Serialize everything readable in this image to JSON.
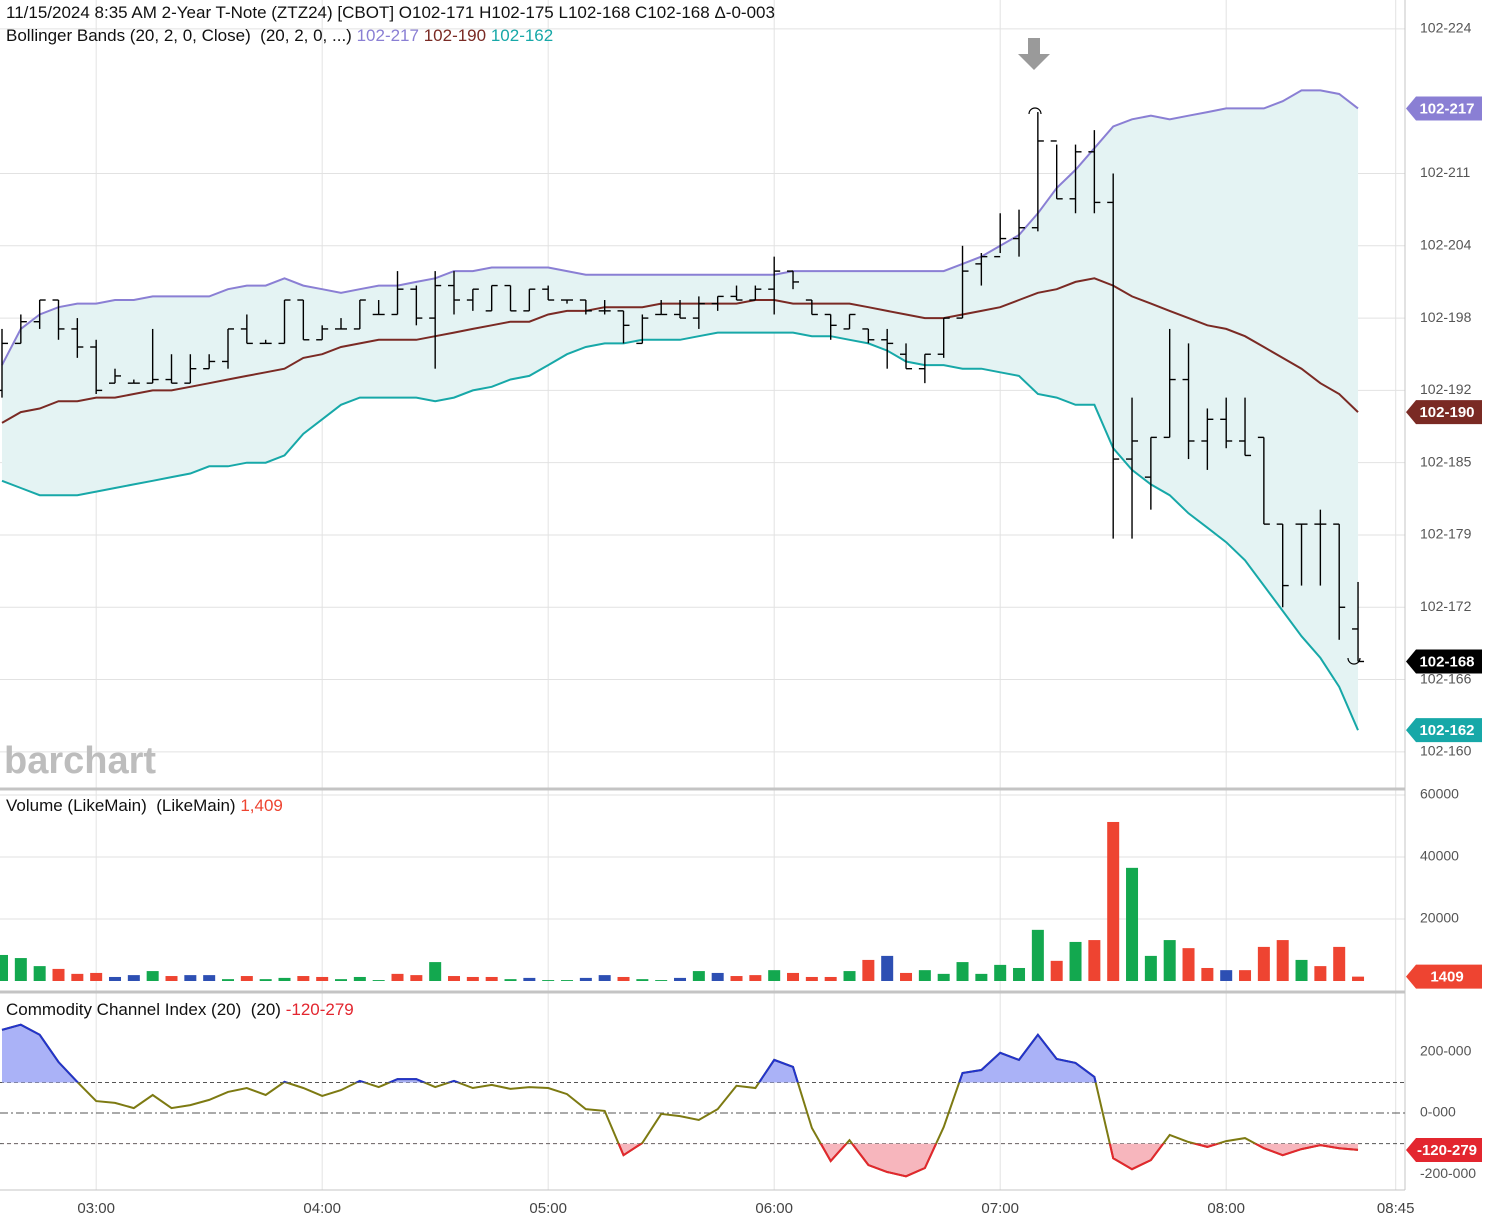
{
  "chart_data": [
    {
      "type": "ohlc",
      "title": "11/15/2024 8:35 AM 2-Year T-Note (ZTZ24) [CBOT] O102-171 H102-175 L102-168 C102-168 Δ-0-003",
      "subtitle": "Bollinger Bands (20, 2, 0, Close)  (20, 2, 0, ...)",
      "watermark": "barchart",
      "color": "#000000",
      "last_label": "102-168",
      "band_fill": "#e4f3f3",
      "grid": true,
      "x": [
        "02:35",
        "02:40",
        "02:45",
        "02:50",
        "02:55",
        "03:00",
        "03:05",
        "03:10",
        "03:15",
        "03:20",
        "03:25",
        "03:30",
        "03:35",
        "03:40",
        "03:45",
        "03:50",
        "03:55",
        "04:00",
        "04:05",
        "04:10",
        "04:15",
        "04:20",
        "04:25",
        "04:30",
        "04:35",
        "04:40",
        "04:45",
        "04:50",
        "04:55",
        "05:00",
        "05:05",
        "05:10",
        "05:15",
        "05:20",
        "05:25",
        "05:30",
        "05:35",
        "05:40",
        "05:45",
        "05:50",
        "05:55",
        "06:00",
        "06:05",
        "06:10",
        "06:15",
        "06:20",
        "06:25",
        "06:30",
        "06:35",
        "06:40",
        "06:45",
        "06:50",
        "06:55",
        "07:00",
        "07:05",
        "07:10",
        "07:15",
        "07:20",
        "07:25",
        "07:30",
        "07:35",
        "07:40",
        "07:45",
        "07:50",
        "07:55",
        "08:00",
        "08:05",
        "08:10",
        "08:15",
        "08:20",
        "08:25",
        "08:30",
        "08:35"
      ],
      "open": [
        102.6,
        102.613,
        102.619,
        102.625,
        102.617,
        102.612,
        102.602,
        102.602,
        102.602,
        102.603,
        102.602,
        102.606,
        102.608,
        102.617,
        102.613,
        102.613,
        102.625,
        102.614,
        102.617,
        102.617,
        102.621,
        102.621,
        102.628,
        102.62,
        102.629,
        102.625,
        102.622,
        102.629,
        102.622,
        102.628,
        102.625,
        102.625,
        102.622,
        102.622,
        102.613,
        102.621,
        102.621,
        102.62,
        102.624,
        102.626,
        102.625,
        102.628,
        102.633,
        102.625,
        102.621,
        102.617,
        102.617,
        102.614,
        102.61,
        102.606,
        102.61,
        102.62,
        102.635,
        102.637,
        102.642,
        102.645,
        102.669,
        102.653,
        102.666,
        102.652,
        102.581,
        102.576,
        102.587,
        102.603,
        102.586,
        102.592,
        102.586,
        102.587,
        102.563,
        102.563,
        102.563,
        102.563,
        102.534
      ],
      "high": [
        102.617,
        102.621,
        102.625,
        102.625,
        102.62,
        102.614,
        102.606,
        102.603,
        102.617,
        102.61,
        102.61,
        102.61,
        102.617,
        102.621,
        102.614,
        102.625,
        102.625,
        102.618,
        102.62,
        102.625,
        102.625,
        102.633,
        102.629,
        102.633,
        102.633,
        102.628,
        102.629,
        102.629,
        102.628,
        102.629,
        102.625,
        102.625,
        102.625,
        102.622,
        102.621,
        102.625,
        102.625,
        102.626,
        102.626,
        102.629,
        102.629,
        102.637,
        102.633,
        102.625,
        102.621,
        102.621,
        102.617,
        102.617,
        102.613,
        102.61,
        102.62,
        102.64,
        102.638,
        102.649,
        102.65,
        102.677,
        102.668,
        102.668,
        102.672,
        102.66,
        102.598,
        102.587,
        102.617,
        102.613,
        102.595,
        102.598,
        102.598,
        102.587,
        102.563,
        102.563,
        102.567,
        102.563,
        102.547
      ],
      "low": [
        102.598,
        102.613,
        102.617,
        102.614,
        102.609,
        102.599,
        102.602,
        102.602,
        102.602,
        102.602,
        102.602,
        102.606,
        102.606,
        102.613,
        102.613,
        102.613,
        102.614,
        102.614,
        102.617,
        102.617,
        102.621,
        102.621,
        102.618,
        102.606,
        102.621,
        102.622,
        102.622,
        102.622,
        102.622,
        102.625,
        102.624,
        102.621,
        102.621,
        102.613,
        102.613,
        102.621,
        102.62,
        102.617,
        102.622,
        102.625,
        102.625,
        102.621,
        102.628,
        102.621,
        102.614,
        102.617,
        102.613,
        102.606,
        102.606,
        102.602,
        102.609,
        102.62,
        102.629,
        102.638,
        102.637,
        102.644,
        102.653,
        102.649,
        102.649,
        102.559,
        102.559,
        102.567,
        102.587,
        102.581,
        102.578,
        102.584,
        102.582,
        102.563,
        102.54,
        102.546,
        102.546,
        102.531,
        102.525
      ],
      "close": [
        102.613,
        102.619,
        102.625,
        102.617,
        102.612,
        102.6,
        102.604,
        102.602,
        102.603,
        102.602,
        102.606,
        102.608,
        102.617,
        102.613,
        102.613,
        102.625,
        102.614,
        102.617,
        102.617,
        102.625,
        102.621,
        102.628,
        102.62,
        102.629,
        102.625,
        102.628,
        102.629,
        102.622,
        102.628,
        102.625,
        102.625,
        102.622,
        102.622,
        102.618,
        102.62,
        102.621,
        102.62,
        102.624,
        102.626,
        102.625,
        102.628,
        102.633,
        102.63,
        102.621,
        102.618,
        102.621,
        102.614,
        102.613,
        102.606,
        102.61,
        102.62,
        102.633,
        102.637,
        102.642,
        102.645,
        102.669,
        102.653,
        102.666,
        102.652,
        102.581,
        102.586,
        102.587,
        102.603,
        102.586,
        102.592,
        102.586,
        102.582,
        102.563,
        102.546,
        102.563,
        102.563,
        102.54,
        102.525
      ],
      "series": [
        {
          "color": "#8a7fd4",
          "last_label": "102-217",
          "values": [
            102.607,
            102.617,
            102.621,
            102.623,
            102.624,
            102.624,
            102.625,
            102.625,
            102.626,
            102.626,
            102.626,
            102.626,
            102.628,
            102.629,
            102.629,
            102.631,
            102.629,
            102.628,
            102.627,
            102.628,
            102.629,
            102.629,
            102.63,
            102.631,
            102.633,
            102.633,
            102.634,
            102.634,
            102.634,
            102.634,
            102.633,
            102.632,
            102.632,
            102.632,
            102.632,
            102.632,
            102.632,
            102.632,
            102.632,
            102.632,
            102.632,
            102.632,
            102.633,
            102.633,
            102.633,
            102.633,
            102.633,
            102.633,
            102.633,
            102.633,
            102.633,
            102.635,
            102.637,
            102.64,
            102.643,
            102.649,
            102.656,
            102.661,
            102.667,
            102.673,
            102.675,
            102.676,
            102.675,
            102.676,
            102.677,
            102.678,
            102.678,
            102.678,
            102.68,
            102.683,
            102.683,
            102.682,
            102.678
          ]
        },
        {
          "color": "#7a2a24",
          "last_label": "102-190",
          "values": [
            102.591,
            102.594,
            102.595,
            102.597,
            102.597,
            102.598,
            102.598,
            102.599,
            102.6,
            102.6,
            102.601,
            102.602,
            102.603,
            102.604,
            102.605,
            102.606,
            102.609,
            102.61,
            102.612,
            102.613,
            102.614,
            102.614,
            102.614,
            102.615,
            102.616,
            102.617,
            102.618,
            102.619,
            102.619,
            102.621,
            102.622,
            102.622,
            102.623,
            102.623,
            102.623,
            102.624,
            102.624,
            102.624,
            102.624,
            102.624,
            102.625,
            102.625,
            102.624,
            102.624,
            102.624,
            102.624,
            102.623,
            102.622,
            102.621,
            102.62,
            102.62,
            102.621,
            102.622,
            102.623,
            102.625,
            102.627,
            102.628,
            102.63,
            102.631,
            102.629,
            102.626,
            102.624,
            102.622,
            102.62,
            102.618,
            102.617,
            102.615,
            102.612,
            102.609,
            102.606,
            102.602,
            102.599,
            102.594
          ]
        },
        {
          "color": "#17a8a8",
          "last_label": "102-162",
          "values": [
            102.575,
            102.573,
            102.571,
            102.571,
            102.571,
            102.572,
            102.573,
            102.574,
            102.575,
            102.576,
            102.577,
            102.579,
            102.579,
            102.58,
            102.58,
            102.582,
            102.588,
            102.592,
            102.596,
            102.598,
            102.598,
            102.598,
            102.598,
            102.597,
            102.598,
            102.6,
            102.601,
            102.603,
            102.604,
            102.607,
            102.61,
            102.612,
            102.613,
            102.613,
            102.614,
            102.614,
            102.614,
            102.615,
            102.616,
            102.616,
            102.616,
            102.616,
            102.616,
            102.615,
            102.615,
            102.614,
            102.613,
            102.611,
            102.608,
            102.607,
            102.607,
            102.606,
            102.606,
            102.605,
            102.604,
            102.599,
            102.598,
            102.596,
            102.596,
            102.584,
            102.578,
            102.574,
            102.571,
            102.566,
            102.562,
            102.558,
            102.553,
            102.546,
            102.539,
            102.532,
            102.526,
            102.518,
            102.506
          ]
        }
      ],
      "ylim": [
        102.49,
        102.708
      ],
      "yticks": [
        {
          "value": 102.7,
          "label": "102-224"
        },
        {
          "value": 102.66,
          "label": "102-211"
        },
        {
          "value": 102.64,
          "label": "102-204"
        },
        {
          "value": 102.62,
          "label": "102-198"
        },
        {
          "value": 102.6,
          "label": "102-192"
        },
        {
          "value": 102.58,
          "label": "102-185"
        },
        {
          "value": 102.56,
          "label": "102-179"
        },
        {
          "value": 102.54,
          "label": "102-172"
        },
        {
          "value": 102.52,
          "label": "102-166"
        },
        {
          "value": 102.5,
          "label": "102-160"
        }
      ]
    },
    {
      "type": "bar",
      "title": "Volume (LikeMain)  (LikeMain)",
      "last_label": "1,409",
      "grid": true,
      "values": [
        8400,
        7400,
        4800,
        3900,
        2300,
        2600,
        1300,
        1900,
        3200,
        1600,
        1900,
        1900,
        600,
        1600,
        600,
        1000,
        1600,
        1300,
        600,
        1300,
        300,
        2300,
        1900,
        6100,
        1600,
        1300,
        1300,
        600,
        1000,
        300,
        300,
        1000,
        1900,
        1300,
        600,
        300,
        1000,
        3200,
        2600,
        1600,
        1900,
        3500,
        2600,
        1300,
        1300,
        3200,
        6800,
        8100,
        2600,
        3500,
        2300,
        6100,
        2300,
        5200,
        4200,
        16500,
        6500,
        12600,
        13200,
        51300,
        36500,
        8100,
        13200,
        10600,
        4200,
        3500,
        3500,
        11000,
        13200,
        6800,
        4800,
        11000,
        1409
      ],
      "colors": [
        "#13a84f",
        "#13a84f",
        "#13a84f",
        "#ee4431",
        "#ee4431",
        "#ee4431",
        "#2d4fb3",
        "#2d4fb3",
        "#13a84f",
        "#ee4431",
        "#2d4fb3",
        "#2d4fb3",
        "#13a84f",
        "#ee4431",
        "#13a84f",
        "#13a84f",
        "#ee4431",
        "#ee4431",
        "#13a84f",
        "#13a84f",
        "#13a84f",
        "#ee4431",
        "#ee4431",
        "#13a84f",
        "#ee4431",
        "#ee4431",
        "#ee4431",
        "#13a84f",
        "#2d4fb3",
        "#13a84f",
        "#13a84f",
        "#2d4fb3",
        "#2d4fb3",
        "#ee4431",
        "#13a84f",
        "#13a84f",
        "#2d4fb3",
        "#13a84f",
        "#2d4fb3",
        "#ee4431",
        "#ee4431",
        "#13a84f",
        "#ee4431",
        "#ee4431",
        "#ee4431",
        "#13a84f",
        "#ee4431",
        "#2d4fb3",
        "#ee4431",
        "#13a84f",
        "#13a84f",
        "#13a84f",
        "#13a84f",
        "#13a84f",
        "#13a84f",
        "#13a84f",
        "#ee4431",
        "#13a84f",
        "#ee4431",
        "#ee4431",
        "#13a84f",
        "#13a84f",
        "#13a84f",
        "#ee4431",
        "#ee4431",
        "#2d4fb3",
        "#ee4431",
        "#ee4431",
        "#ee4431",
        "#13a84f",
        "#ee4431",
        "#ee4431",
        "#ee4431"
      ],
      "ylim": [
        0,
        60000
      ],
      "yticks": [
        20000,
        40000,
        60000
      ]
    },
    {
      "type": "line",
      "title": "Commodity Channel Index (20)  (20)",
      "last_label": "-120-279",
      "color": "#7d7a12",
      "above_color": "#2233cc",
      "below_color": "#e3262f",
      "above_fill": "#aab2f7",
      "below_fill": "#f7b6bd",
      "levels": [
        100,
        0,
        -100
      ],
      "grid": false,
      "values": [
        272,
        289,
        256,
        167,
        102,
        39,
        33,
        16,
        59,
        16,
        26,
        43,
        69,
        82,
        59,
        102,
        82,
        56,
        75,
        105,
        85,
        111,
        111,
        85,
        105,
        82,
        92,
        79,
        85,
        82,
        62,
        13,
        7,
        -138,
        -98,
        -3,
        -10,
        -23,
        13,
        89,
        82,
        174,
        151,
        -49,
        -157,
        -89,
        -170,
        -193,
        -207,
        -180,
        -46,
        131,
        141,
        197,
        174,
        256,
        177,
        164,
        118,
        -148,
        -184,
        -154,
        -72,
        -95,
        -111,
        -92,
        -82,
        -115,
        -138,
        -118,
        -105,
        -115,
        -120.872
      ],
      "ylim": [
        -252,
        370
      ],
      "yticks": [
        {
          "value": 200,
          "label": "200-000"
        },
        {
          "value": 0,
          "label": "0-000"
        },
        {
          "value": -200,
          "label": "-200-000"
        }
      ],
      "xlim": [
        "02:35",
        "08:48"
      ],
      "xticks": [
        "03:00",
        "04:00",
        "05:00",
        "06:00",
        "07:00",
        "08:00",
        "08:45"
      ]
    }
  ]
}
